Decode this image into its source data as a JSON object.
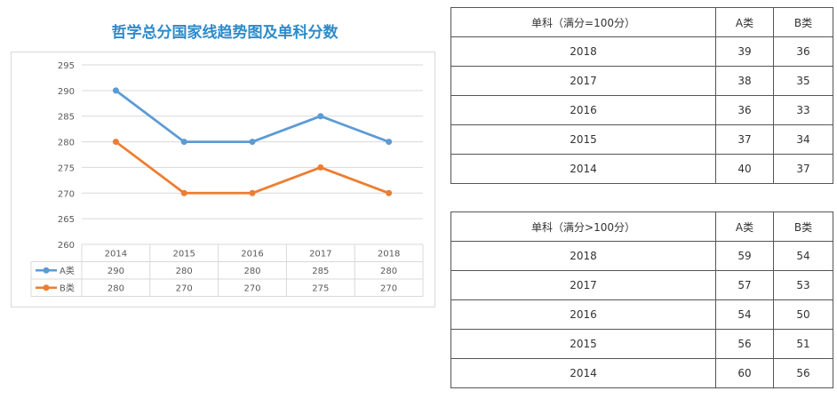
{
  "chart_data": {
    "type": "line",
    "title": "哲学总分国家线趋势图及单科分数",
    "categories": [
      "2014",
      "2015",
      "2016",
      "2017",
      "2018"
    ],
    "series": [
      {
        "name": "A类",
        "values": [
          290,
          280,
          280,
          285,
          280
        ],
        "color": "#5b9bd5"
      },
      {
        "name": "B类",
        "values": [
          280,
          270,
          270,
          275,
          270
        ],
        "color": "#ed7d31"
      }
    ],
    "ylim": [
      260,
      295
    ],
    "yticks": [
      260,
      265,
      270,
      275,
      280,
      285,
      290,
      295
    ],
    "grid": true,
    "legend": "data-table"
  },
  "table1": {
    "header": [
      "单科（满分=100分）",
      "A类",
      "B类"
    ],
    "rows": [
      [
        "2018",
        "39",
        "36"
      ],
      [
        "2017",
        "38",
        "35"
      ],
      [
        "2016",
        "36",
        "33"
      ],
      [
        "2015",
        "37",
        "34"
      ],
      [
        "2014",
        "40",
        "37"
      ]
    ]
  },
  "table2": {
    "header": [
      "单科（满分>100分）",
      "A类",
      "B类"
    ],
    "rows": [
      [
        "2018",
        "59",
        "54"
      ],
      [
        "2017",
        "57",
        "53"
      ],
      [
        "2016",
        "54",
        "50"
      ],
      [
        "2015",
        "56",
        "51"
      ],
      [
        "2014",
        "60",
        "56"
      ]
    ]
  }
}
